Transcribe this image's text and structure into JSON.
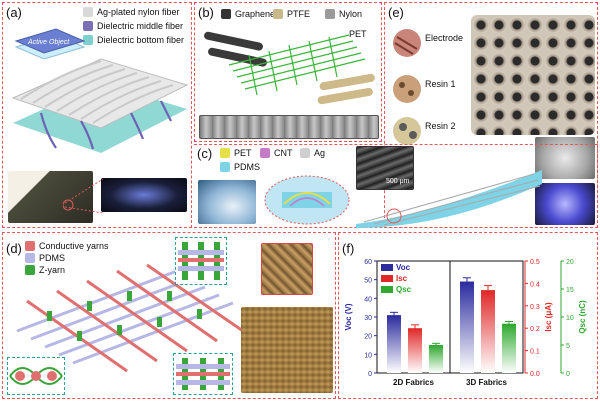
{
  "panels": {
    "a": {
      "label": "(a)",
      "legend": [
        {
          "text": "Ag-plated nylon fiber",
          "color": "#d9d9d9"
        },
        {
          "text": "Dielectric middle fiber",
          "color": "#7b6fb5"
        },
        {
          "text": "Dielectric bottom fiber",
          "color": "#7fd1cf"
        }
      ],
      "active_object": "Active Object"
    },
    "b": {
      "label": "(b)",
      "legend": [
        {
          "text": "Graphene",
          "color": "#333333"
        },
        {
          "text": "PTFE",
          "color": "#c8b88a"
        },
        {
          "text": "Nylon",
          "color": "#9a9a9a"
        }
      ],
      "pet_label": "PET"
    },
    "c": {
      "label": "(c)",
      "legend_row1": [
        {
          "text": "PET",
          "color": "#e6df4a"
        },
        {
          "text": "CNT",
          "color": "#c77ac8"
        },
        {
          "text": "Ag",
          "color": "#cfcfcf"
        }
      ],
      "legend_row2": [
        {
          "text": "PDMS",
          "color": "#7fd3e6"
        }
      ],
      "scale_bar": "500 μm"
    },
    "d": {
      "label": "(d)",
      "legend": [
        {
          "text": "Conductive yarns",
          "color": "#e07070"
        },
        {
          "text": "PDMS",
          "color": "#b7b7e6"
        },
        {
          "text": "Z-yarn",
          "color": "#3aa53a"
        }
      ]
    },
    "e": {
      "label": "(e)",
      "items": [
        "Electrode",
        "Resin 1",
        "Resin 2"
      ]
    },
    "f": {
      "label": "(f)",
      "legend": [
        {
          "text": "Voc",
          "color": "#2b2b9e"
        },
        {
          "text": "Isc",
          "color": "#e02828"
        },
        {
          "text": "Qsc",
          "color": "#2ea82e"
        }
      ]
    }
  },
  "chart_data": {
    "type": "bar",
    "categories": [
      "2D Fabrics",
      "3D Fabrics"
    ],
    "series": [
      {
        "name": "Voc",
        "axis": "Voc (V)",
        "values": [
          31,
          49
        ],
        "errors": [
          1.5,
          2
        ],
        "color": "#2b2b9e"
      },
      {
        "name": "Isc",
        "axis": "Isc (μA)",
        "values": [
          0.2,
          0.37
        ],
        "errors": [
          0.015,
          0.02
        ],
        "color": "#e02828"
      },
      {
        "name": "Qsc",
        "axis": "Qsc (nC)",
        "values": [
          5,
          8.8
        ],
        "errors": [
          0.3,
          0.4
        ],
        "color": "#2ea82e"
      }
    ],
    "axes": {
      "left": {
        "label": "Voc (V)",
        "ylim": [
          0,
          60
        ],
        "ticks": [
          0,
          10,
          20,
          30,
          40,
          50,
          60
        ],
        "color": "#2b2b9e"
      },
      "mid": {
        "label": "Isc (μA)",
        "ylim": [
          0,
          0.5
        ],
        "ticks": [
          0.0,
          0.1,
          0.2,
          0.3,
          0.4,
          0.5
        ],
        "color": "#e02828"
      },
      "right": {
        "label": "Qsc (nC)",
        "ylim": [
          0,
          20
        ],
        "ticks": [
          0,
          5,
          10,
          15,
          20
        ],
        "color": "#2ea82e"
      }
    },
    "legend_position": "top-left"
  }
}
